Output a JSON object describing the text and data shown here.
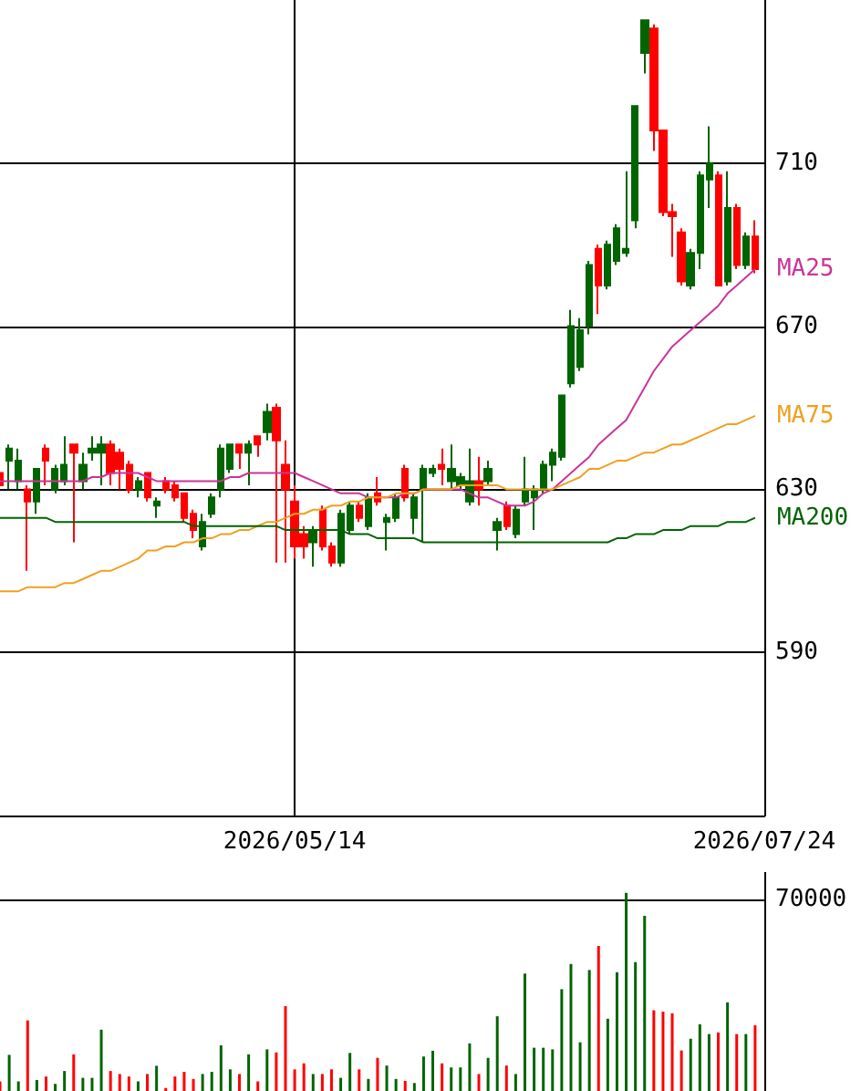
{
  "chart_data": [
    {
      "type": "candlestick",
      "categories": [
        null,
        null,
        null,
        null,
        null,
        null,
        null,
        null,
        null,
        null,
        null,
        null,
        null,
        null,
        null,
        null,
        null,
        null,
        null,
        null,
        null,
        null,
        null,
        null,
        null,
        null,
        null,
        null,
        null,
        null,
        null,
        null,
        "2026/05/14",
        null,
        null,
        null,
        null,
        null,
        null,
        null,
        null,
        null,
        null,
        null,
        null,
        null,
        null,
        null,
        null,
        null,
        null,
        null,
        null,
        null,
        null,
        null,
        null,
        null,
        null,
        null,
        null,
        null,
        null,
        null,
        null,
        null,
        null,
        null,
        null,
        null,
        null,
        null,
        null,
        null,
        null,
        null,
        null,
        null,
        null,
        null,
        null,
        null,
        null,
        "2026/07/24"
      ],
      "ohlc": [
        [
          634,
          635,
          630,
          631
        ],
        [
          637,
          641,
          630,
          640
        ],
        [
          632,
          640,
          630,
          637
        ],
        [
          630,
          631,
          610,
          627
        ],
        [
          627,
          635,
          624,
          635
        ],
        [
          640,
          641,
          631,
          637
        ],
        [
          630,
          636,
          629,
          635
        ],
        [
          632,
          643,
          631,
          636
        ],
        [
          641,
          641,
          617,
          639
        ],
        [
          632,
          639,
          630,
          636
        ],
        [
          639,
          643,
          637,
          640
        ],
        [
          639,
          643,
          631,
          641
        ],
        [
          641,
          642,
          631,
          634
        ],
        [
          639,
          640,
          630,
          635
        ],
        [
          636,
          637,
          629,
          630
        ],
        [
          630,
          633,
          628,
          632
        ],
        [
          634,
          634,
          627,
          628
        ],
        [
          626,
          628,
          623,
          627
        ],
        [
          632,
          633,
          629,
          630
        ],
        [
          631,
          632,
          627,
          628
        ],
        [
          629,
          629,
          622,
          623
        ],
        [
          624,
          625,
          618,
          620
        ],
        [
          616,
          624,
          615,
          622
        ],
        [
          624,
          629,
          623,
          628
        ],
        [
          630,
          641,
          628,
          640
        ],
        [
          635,
          641,
          634,
          641
        ],
        [
          641,
          641,
          635,
          639
        ],
        [
          639,
          642,
          631,
          641
        ],
        [
          643,
          643,
          638,
          641
        ],
        [
          644,
          651,
          642,
          649
        ],
        [
          650,
          651,
          612,
          642
        ],
        [
          636,
          642,
          612,
          630
        ],
        [
          627,
          631,
          613,
          616
        ],
        [
          619,
          621,
          613,
          616
        ],
        [
          617,
          621,
          611,
          620
        ],
        [
          625,
          626,
          615,
          616
        ],
        [
          616,
          617,
          611,
          612
        ],
        [
          612,
          625,
          611,
          624
        ],
        [
          620,
          627,
          619,
          626
        ],
        [
          626,
          627,
          622,
          623
        ],
        [
          621,
          629,
          620,
          628
        ],
        [
          629,
          633,
          626,
          627
        ],
        [
          622,
          624,
          615,
          623
        ],
        [
          623,
          629,
          622,
          628
        ],
        [
          635,
          636,
          627,
          628
        ],
        [
          623,
          629,
          619,
          628
        ],
        [
          630,
          636,
          617,
          635
        ],
        [
          634,
          636,
          633,
          635
        ],
        [
          636,
          640,
          631,
          635
        ],
        [
          632,
          641,
          630,
          635
        ],
        [
          631,
          634,
          630,
          633
        ],
        [
          627,
          640,
          626,
          632
        ],
        [
          632,
          638,
          626,
          630
        ],
        [
          632,
          637,
          631,
          635
        ],
        [
          620,
          623,
          615,
          622
        ],
        [
          626,
          627,
          620,
          621
        ],
        [
          619,
          626,
          618,
          625
        ],
        [
          627,
          638,
          626,
          630
        ],
        [
          628,
          631,
          620,
          630
        ],
        [
          630,
          637,
          629,
          636
        ],
        [
          636,
          640,
          632,
          639
        ],
        [
          638,
          653,
          637,
          653
        ],
        [
          656,
          674,
          655,
          670
        ],
        [
          660,
          672,
          659,
          669
        ],
        [
          670,
          686,
          668,
          685
        ],
        [
          689,
          690,
          673,
          680
        ],
        [
          680,
          691,
          679,
          690
        ],
        [
          686,
          695,
          685,
          694
        ],
        [
          688,
          708,
          687,
          689
        ],
        [
          696,
          724,
          694,
          724
        ],
        [
          737,
          745,
          732,
          745
        ],
        [
          743,
          744,
          713,
          718
        ],
        [
          718,
          718,
          697,
          698
        ],
        [
          698,
          700,
          687,
          697
        ],
        [
          693,
          694,
          680,
          681
        ],
        [
          680,
          689,
          679,
          688
        ],
        [
          688,
          708,
          684,
          707
        ],
        [
          706,
          719,
          699,
          710
        ],
        [
          707,
          708,
          680,
          680
        ],
        [
          681,
          708,
          680,
          699
        ],
        [
          699,
          700,
          684,
          685
        ],
        [
          685,
          693,
          684,
          692
        ],
        [
          692,
          696,
          683,
          684
        ],
        null
      ],
      "colors": [
        "#ff0000",
        "#006400",
        "#006400",
        "#ff0000",
        "#006400",
        "#ff0000",
        "#006400",
        "#006400",
        "#ff0000",
        "#006400",
        "#006400",
        "#006400",
        "#ff0000",
        "#ff0000",
        "#ff0000",
        "#006400",
        "#ff0000",
        "#006400",
        "#ff0000",
        "#ff0000",
        "#ff0000",
        "#ff0000",
        "#006400",
        "#006400",
        "#006400",
        "#006400",
        "#ff0000",
        "#006400",
        "#ff0000",
        "#006400",
        "#ff0000",
        "#ff0000",
        "#ff0000",
        "#ff0000",
        "#006400",
        "#ff0000",
        "#ff0000",
        "#006400",
        "#006400",
        "#ff0000",
        "#006400",
        "#ff0000",
        "#006400",
        "#006400",
        "#ff0000",
        "#006400",
        "#006400",
        "#006400",
        "#ff0000",
        "#006400",
        "#006400",
        "#006400",
        "#ff0000",
        "#006400",
        "#006400",
        "#ff0000",
        "#006400",
        "#006400",
        "#006400",
        "#006400",
        "#006400",
        "#006400",
        "#006400",
        "#006400",
        "#006400",
        "#ff0000",
        "#006400",
        "#006400",
        "#006400",
        "#006400",
        "#006400",
        "#ff0000",
        "#ff0000",
        "#ff0000",
        "#ff0000",
        "#006400",
        "#006400",
        "#006400",
        "#ff0000",
        "#006400",
        "#ff0000",
        "#006400",
        "#ff0000",
        null
      ],
      "series": [
        {
          "type": "line",
          "name": "MA25",
          "color": "#cc3399",
          "values": [
            632,
            632,
            632,
            632,
            632,
            632,
            632,
            632,
            632,
            632,
            633,
            633,
            634,
            634,
            634,
            634,
            633,
            632,
            632,
            632,
            632,
            632,
            632,
            632,
            632,
            633,
            633,
            634,
            634,
            634,
            634,
            634,
            634,
            633,
            632,
            631,
            630,
            629,
            629,
            629,
            628,
            628,
            628,
            628,
            629,
            629,
            630,
            630,
            630,
            630,
            630,
            629,
            628,
            628,
            627,
            626,
            626,
            626,
            627,
            629,
            630,
            632,
            634,
            636,
            638,
            641,
            643,
            645,
            647,
            651,
            655,
            659,
            662,
            665,
            667,
            669,
            671,
            673,
            675,
            678,
            680,
            682,
            684,
            null
          ]
        },
        {
          "type": "line",
          "name": "MA75",
          "color": "#f0a020",
          "values": [
            605,
            605,
            605,
            606,
            606,
            606,
            606,
            607,
            607,
            608,
            609,
            610,
            610,
            611,
            612,
            613,
            615,
            615,
            616,
            616,
            617,
            617,
            618,
            618,
            619,
            619,
            620,
            620,
            621,
            622,
            622,
            623,
            624,
            624,
            625,
            625,
            626,
            626,
            627,
            627,
            628,
            628,
            628,
            629,
            629,
            629,
            630,
            630,
            630,
            630,
            631,
            631,
            631,
            631,
            631,
            630,
            630,
            630,
            630,
            630,
            630,
            631,
            632,
            633,
            635,
            635,
            636,
            637,
            637,
            638,
            639,
            639,
            640,
            641,
            641,
            642,
            643,
            644,
            645,
            646,
            646,
            647,
            648,
            null
          ]
        },
        {
          "type": "line",
          "name": "MA200",
          "color": "#006400",
          "values": [
            623,
            623,
            623,
            623,
            623,
            623,
            622,
            622,
            622,
            622,
            622,
            622,
            622,
            622,
            622,
            622,
            622,
            622,
            622,
            622,
            622,
            621,
            621,
            621,
            621,
            621,
            621,
            621,
            621,
            621,
            621,
            620,
            620,
            620,
            620,
            620,
            620,
            620,
            619,
            619,
            619,
            618,
            618,
            618,
            618,
            618,
            617,
            617,
            617,
            617,
            617,
            617,
            617,
            617,
            617,
            617,
            617,
            617,
            617,
            617,
            617,
            617,
            617,
            617,
            617,
            617,
            617,
            618,
            618,
            619,
            619,
            619,
            620,
            620,
            620,
            621,
            621,
            621,
            621,
            622,
            622,
            622,
            623,
            null
          ]
        }
      ],
      "ylim": [
        550,
        750
      ],
      "yticks": [
        590,
        630,
        670,
        710
      ],
      "grid": true
    },
    {
      "type": "bar",
      "categories": [
        null,
        null,
        null,
        null,
        null,
        null,
        null,
        null,
        null,
        null,
        null,
        null,
        null,
        null,
        null,
        null,
        null,
        null,
        null,
        null,
        null,
        null,
        null,
        null,
        null,
        null,
        null,
        null,
        null,
        null,
        null,
        null,
        "2026/05/14",
        null,
        null,
        null,
        null,
        null,
        null,
        null,
        null,
        null,
        null,
        null,
        null,
        null,
        null,
        null,
        null,
        null,
        null,
        null,
        null,
        null,
        null,
        null,
        null,
        null,
        null,
        null,
        null,
        null,
        null,
        null,
        null,
        null,
        null,
        null,
        null,
        null,
        null,
        null,
        null,
        null,
        null,
        null,
        null,
        null,
        null,
        null,
        null,
        null,
        null,
        "2026/07/24"
      ],
      "values": [
        3500,
        13200,
        3500,
        25800,
        4000,
        5300,
        2600,
        7300,
        13400,
        4800,
        4800,
        22400,
        7300,
        6200,
        5300,
        3500,
        6200,
        9200,
        1100,
        5300,
        7000,
        4400,
        6200,
        7000,
        16700,
        7900,
        6200,
        13400,
        3500,
        15200,
        14100,
        31000,
        7900,
        10100,
        6200,
        6200,
        7900,
        4800,
        13900,
        7900,
        4400,
        12100,
        9300,
        4400,
        3700,
        2900,
        12600,
        14700,
        10100,
        8600,
        8600,
        17400,
        6200,
        12100,
        27300,
        9300,
        6200,
        42900,
        15800,
        15800,
        15200,
        37200,
        46400,
        17800,
        44200,
        53000,
        26400,
        43400,
        72400,
        47100,
        64000,
        29500,
        29000,
        28400,
        14800,
        19100,
        24400,
        20800,
        21400,
        32400,
        20800,
        20800,
        24000,
        null
      ],
      "colors": [
        "#ff0000",
        "#006400",
        "#006400",
        "#ff0000",
        "#006400",
        "#ff0000",
        "#006400",
        "#006400",
        "#ff0000",
        "#006400",
        "#006400",
        "#006400",
        "#ff0000",
        "#ff0000",
        "#ff0000",
        "#006400",
        "#ff0000",
        "#006400",
        "#ff0000",
        "#ff0000",
        "#ff0000",
        "#ff0000",
        "#006400",
        "#006400",
        "#006400",
        "#006400",
        "#ff0000",
        "#006400",
        "#ff0000",
        "#006400",
        "#ff0000",
        "#ff0000",
        "#ff0000",
        "#ff0000",
        "#006400",
        "#ff0000",
        "#ff0000",
        "#006400",
        "#006400",
        "#ff0000",
        "#006400",
        "#ff0000",
        "#006400",
        "#006400",
        "#ff0000",
        "#006400",
        "#006400",
        "#006400",
        "#ff0000",
        "#006400",
        "#006400",
        "#006400",
        "#ff0000",
        "#006400",
        "#006400",
        "#ff0000",
        "#006400",
        "#006400",
        "#006400",
        "#006400",
        "#006400",
        "#006400",
        "#006400",
        "#006400",
        "#006400",
        "#ff0000",
        "#006400",
        "#006400",
        "#006400",
        "#006400",
        "#006400",
        "#ff0000",
        "#ff0000",
        "#ff0000",
        "#ff0000",
        "#006400",
        "#006400",
        "#006400",
        "#ff0000",
        "#006400",
        "#ff0000",
        "#006400",
        "#ff0000",
        null
      ],
      "ylim": [
        0,
        80000
      ],
      "yticks": [
        70000
      ],
      "grid": "y",
      "tick_labels": "y"
    }
  ]
}
